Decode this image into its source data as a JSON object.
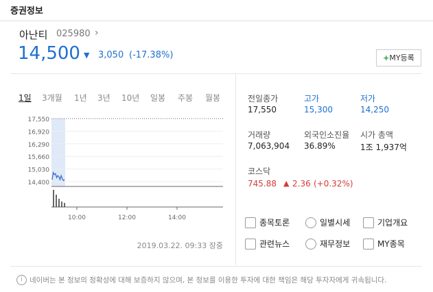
{
  "header": {
    "title": "증권정보"
  },
  "stock": {
    "name": "아난티",
    "code": "025980",
    "price": "14,500",
    "change": "3,050",
    "change_rate": "(-17.38%)",
    "my_button": "MY등록"
  },
  "tabs": [
    "1일",
    "3개월",
    "1년",
    "3년",
    "10년",
    "일봉",
    "주봉",
    "월봉"
  ],
  "chart_data": {
    "type": "line",
    "color": "#3366cc",
    "values": [
      14500,
      14850,
      14750,
      14800,
      14600,
      14700,
      14650,
      14500,
      14700,
      14550,
      14450,
      14500
    ],
    "ylim": [
      14160,
      17550
    ],
    "yticks": [
      {
        "value": 14400,
        "label": "14,400"
      },
      {
        "value": 15030,
        "label": "15,030"
      },
      {
        "value": 15660,
        "label": "15,660"
      },
      {
        "value": 16290,
        "label": "16,290"
      },
      {
        "value": 16920,
        "label": "16,920"
      },
      {
        "value": 17550,
        "label": "17,550"
      }
    ],
    "xticks": [
      "10:00",
      "12:00",
      "14:00"
    ]
  },
  "timestamp": "2019.03.22. 09:33 장중",
  "stats": [
    {
      "label": "전일종가",
      "value": "17,550"
    },
    {
      "label": "고가",
      "value": "15,300"
    },
    {
      "label": "저가",
      "value": "14,250"
    },
    {
      "label": "거래량",
      "value": "7,063,904"
    },
    {
      "label": "외국인소진율",
      "value": "36.89%"
    },
    {
      "label": "시가 총액",
      "value": "1조 1,937억"
    }
  ],
  "index": {
    "name": "코스닥",
    "value": "745.88",
    "change": "2.36",
    "change_rate": "(+0.32%)"
  },
  "links": [
    "종목토론",
    "일별시세",
    "기업개요",
    "관련뉴스",
    "재무정보",
    "MY종목"
  ],
  "notice": "네이버는 본 정보의 정확성에 대해 보증하지 않으며, 본 정보를 이용한 투자에 대한 책임은 해당 투자자에게 귀속됩니다."
}
